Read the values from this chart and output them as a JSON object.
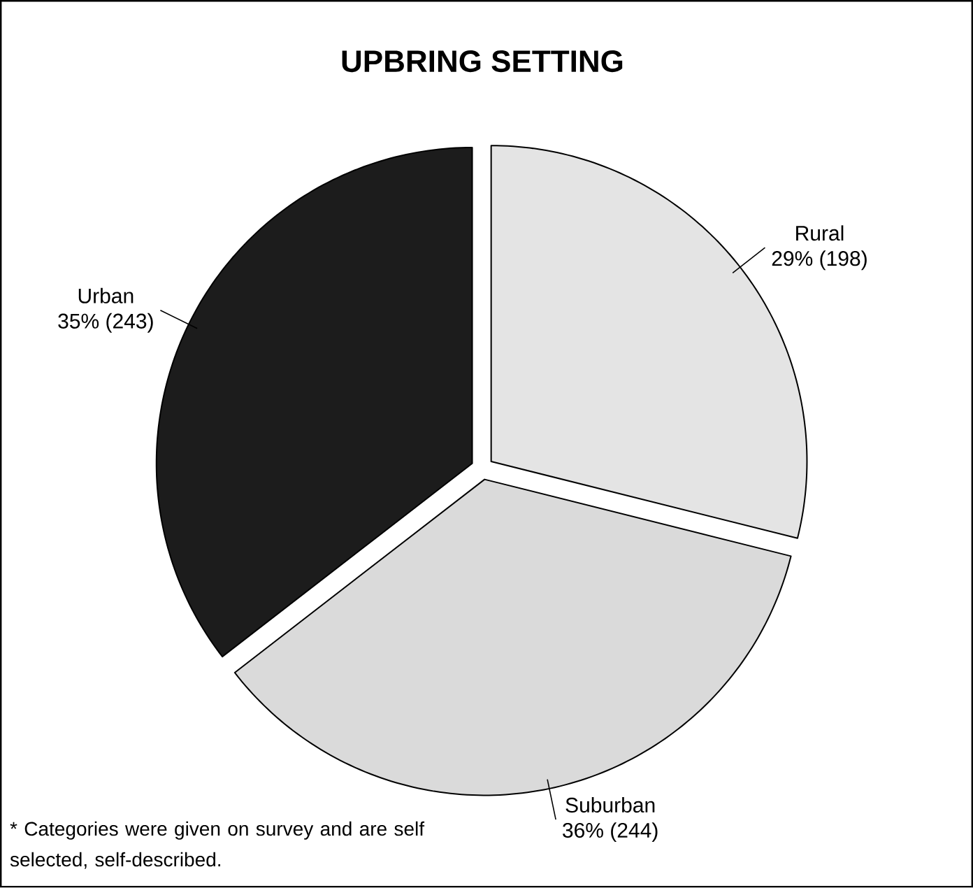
{
  "chart_data": {
    "type": "pie",
    "title": "UPBRING SETTING",
    "categories": [
      "Rural",
      "Suburban",
      "Urban"
    ],
    "values": [
      198,
      244,
      243
    ],
    "value_labels": [
      "29% (198)",
      "36% (244)",
      "35% (243)"
    ],
    "colors": [
      "#e4e4e4",
      "#dadada",
      "#1c1c1c"
    ],
    "annotations": [
      "* Categories were given on survey and are self selected, self-described."
    ]
  }
}
